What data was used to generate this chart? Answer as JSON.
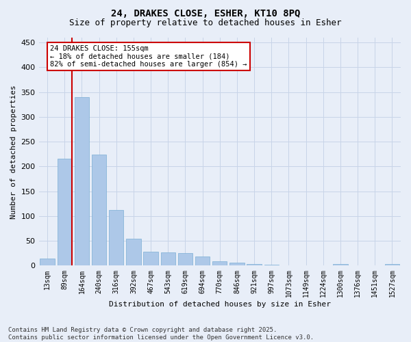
{
  "title_line1": "24, DRAKES CLOSE, ESHER, KT10 8PQ",
  "title_line2": "Size of property relative to detached houses in Esher",
  "categories": [
    "13sqm",
    "89sqm",
    "164sqm",
    "240sqm",
    "316sqm",
    "392sqm",
    "467sqm",
    "543sqm",
    "619sqm",
    "694sqm",
    "770sqm",
    "846sqm",
    "921sqm",
    "997sqm",
    "1073sqm",
    "1149sqm",
    "1224sqm",
    "1300sqm",
    "1376sqm",
    "1451sqm",
    "1527sqm"
  ],
  "values": [
    15,
    216,
    340,
    224,
    113,
    54,
    28,
    27,
    26,
    18,
    9,
    6,
    3,
    2,
    1,
    1,
    0,
    3,
    1,
    1,
    3
  ],
  "bar_color": "#adc8e8",
  "bar_edge_color": "#7aaed4",
  "ylabel": "Number of detached properties",
  "xlabel": "Distribution of detached houses by size in Esher",
  "ylim": [
    0,
    460
  ],
  "yticks": [
    0,
    50,
    100,
    150,
    200,
    250,
    300,
    350,
    400,
    450
  ],
  "grid_color": "#c8d4e8",
  "background_color": "#e8eef8",
  "vline_color": "#cc0000",
  "vline_bar_index": 1,
  "annotation_text": "24 DRAKES CLOSE: 155sqm\n← 18% of detached houses are smaller (184)\n82% of semi-detached houses are larger (854) →",
  "annotation_box_facecolor": "#ffffff",
  "annotation_box_edgecolor": "#cc0000",
  "footer_line1": "Contains HM Land Registry data © Crown copyright and database right 2025.",
  "footer_line2": "Contains public sector information licensed under the Open Government Licence v3.0.",
  "title_fontsize": 10,
  "subtitle_fontsize": 9,
  "tick_fontsize": 7,
  "ylabel_fontsize": 8,
  "xlabel_fontsize": 8,
  "annotation_fontsize": 7.5,
  "footer_fontsize": 6.5
}
